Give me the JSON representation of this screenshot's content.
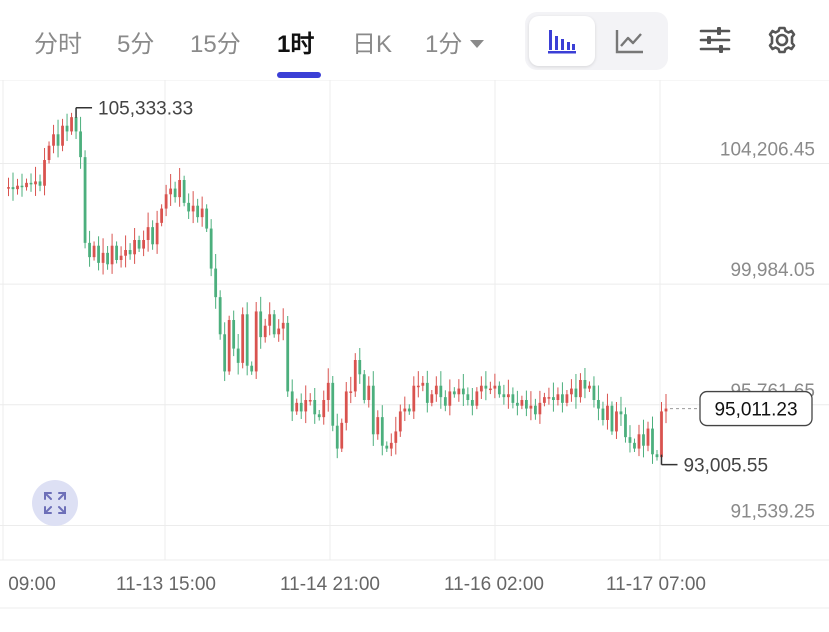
{
  "toolbar": {
    "tabs": [
      {
        "label": "分时"
      },
      {
        "label": "5分"
      },
      {
        "label": "15分"
      },
      {
        "label": "1时",
        "active": true
      },
      {
        "label": "日K"
      },
      {
        "label": "1分"
      }
    ],
    "accent_color": "#3b3fd6",
    "icons": [
      "candlestick-chart-icon",
      "line-chart-icon",
      "sliders-icon",
      "gear-icon"
    ]
  },
  "expand_icon": "expand-arrows-icon",
  "colors": {
    "up": "#d9534f",
    "down": "#4caf7d",
    "grid": "#ececec",
    "label": "#8a8a8a"
  },
  "chart_data": {
    "type": "candlestick",
    "y_axis": {
      "ticks": [
        "104,206.45",
        "99,984.05",
        "95,761.65",
        "91,539.25"
      ],
      "ylim": [
        89700,
        106500
      ],
      "position": "right"
    },
    "x_axis": {
      "ticks": [
        "09:00",
        "11-13 15:00",
        "11-14 21:00",
        "11-16 02:00",
        "11-17 07:00"
      ]
    },
    "annotations": {
      "high": "105,333.33",
      "low": "93,005.55"
    },
    "last_price": "95,011.23",
    "prices": [
      102700,
      102750,
      102680,
      102800,
      102750,
      102900,
      102850,
      102950,
      102800,
      103700,
      104200,
      104600,
      104200,
      104900,
      104700,
      105200,
      104700,
      103800,
      100800,
      100300,
      100700,
      100100,
      100450,
      100050,
      100700,
      100200,
      100350,
      100550,
      100400,
      100900,
      100600,
      100900,
      101350,
      100750,
      101500,
      102000,
      102500,
      102700,
      102400,
      103000,
      102200,
      101900,
      102100,
      101700,
      102000,
      101300,
      99900,
      98900,
      97600,
      96300,
      98100,
      97100,
      96600,
      98300,
      96500,
      96300,
      98400,
      97500,
      97900,
      98300,
      97600,
      97800,
      98000,
      95600,
      94900,
      95200,
      94900,
      95300,
      95300,
      94800,
      94700,
      95300,
      95900,
      94400,
      93600,
      94500,
      95600,
      95600,
      96700,
      96200,
      95300,
      95800,
      94100,
      94700,
      93700,
      93600,
      93800,
      94200,
      94900,
      95000,
      94900,
      95800,
      95800,
      95900,
      95200,
      95500,
      95800,
      95400,
      95100,
      95600,
      95500,
      95700,
      95500,
      95300,
      95100,
      95600,
      95800,
      95700,
      95700,
      95800,
      95500,
      95400,
      95500,
      95200,
      95100,
      95300,
      95000,
      95100,
      94800,
      95200,
      95400,
      95400,
      95300,
      95500,
      95200,
      95500,
      95700,
      95400,
      96000,
      95700,
      95800,
      95300,
      95000,
      94600,
      95100,
      94200,
      94900,
      94800,
      94000,
      93800,
      93600,
      94100,
      93700,
      94300,
      93400,
      93300,
      94900,
      95000
    ]
  }
}
